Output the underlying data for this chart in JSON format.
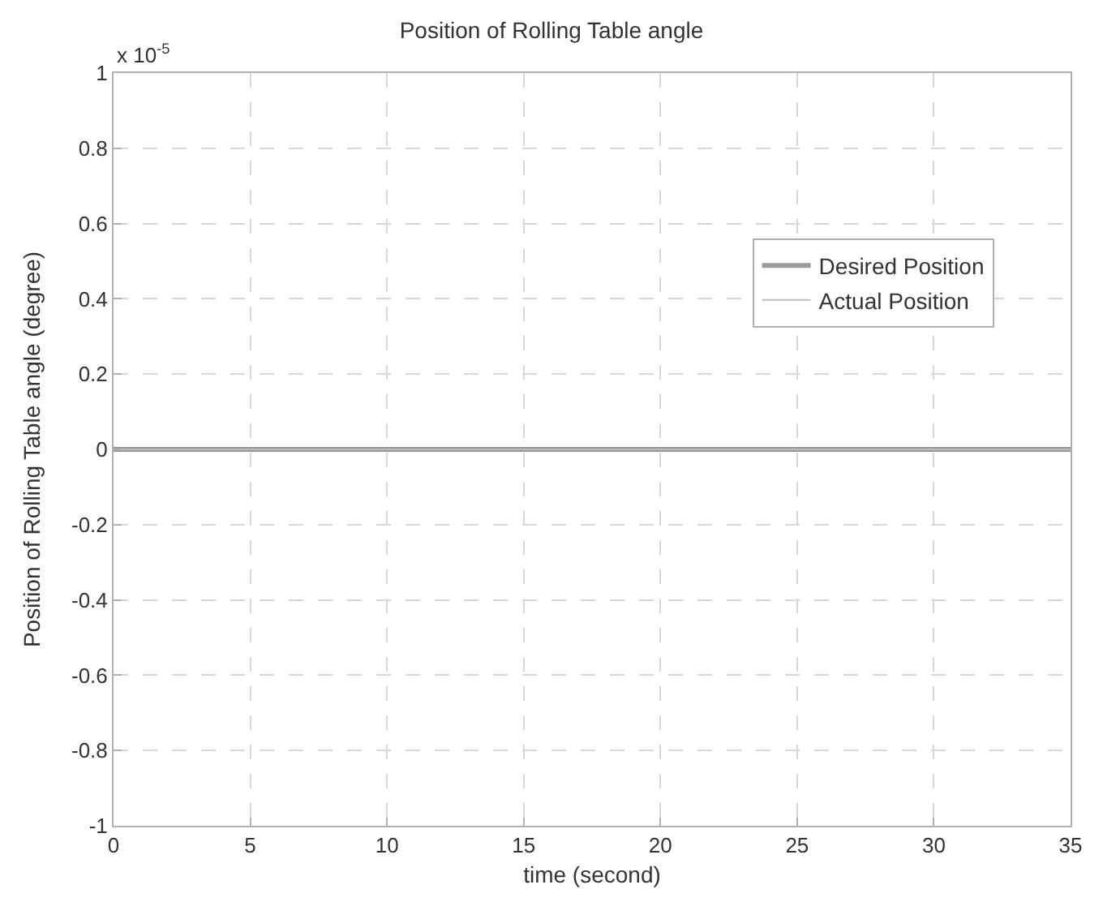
{
  "chart_data": {
    "type": "line",
    "title": "Position of Rolling Table angle",
    "xlabel": "time (second)",
    "ylabel": "Position of Rolling Table angle (degree)",
    "annotations": [
      "x 10$^{-5}$"
    ],
    "x": [
      0,
      35
    ],
    "series": [
      {
        "name": "Desired Position",
        "color": "#9a9a9a",
        "values": [
          0,
          0
        ]
      },
      {
        "name": "Actual Position",
        "color": "#bdbdbd",
        "values": [
          0,
          0
        ]
      }
    ],
    "xlim": [
      0,
      35
    ],
    "xticks": [
      0,
      5,
      10,
      15,
      20,
      25,
      30,
      35
    ],
    "ylim": [
      -1,
      1
    ],
    "yticks": [
      -1,
      -0.8,
      -0.6,
      -0.4,
      -0.2,
      0,
      0.2,
      0.4,
      0.6,
      0.8,
      1
    ],
    "grid": true,
    "legend": "top right",
    "marker": "none",
    "line_style": "solid"
  }
}
